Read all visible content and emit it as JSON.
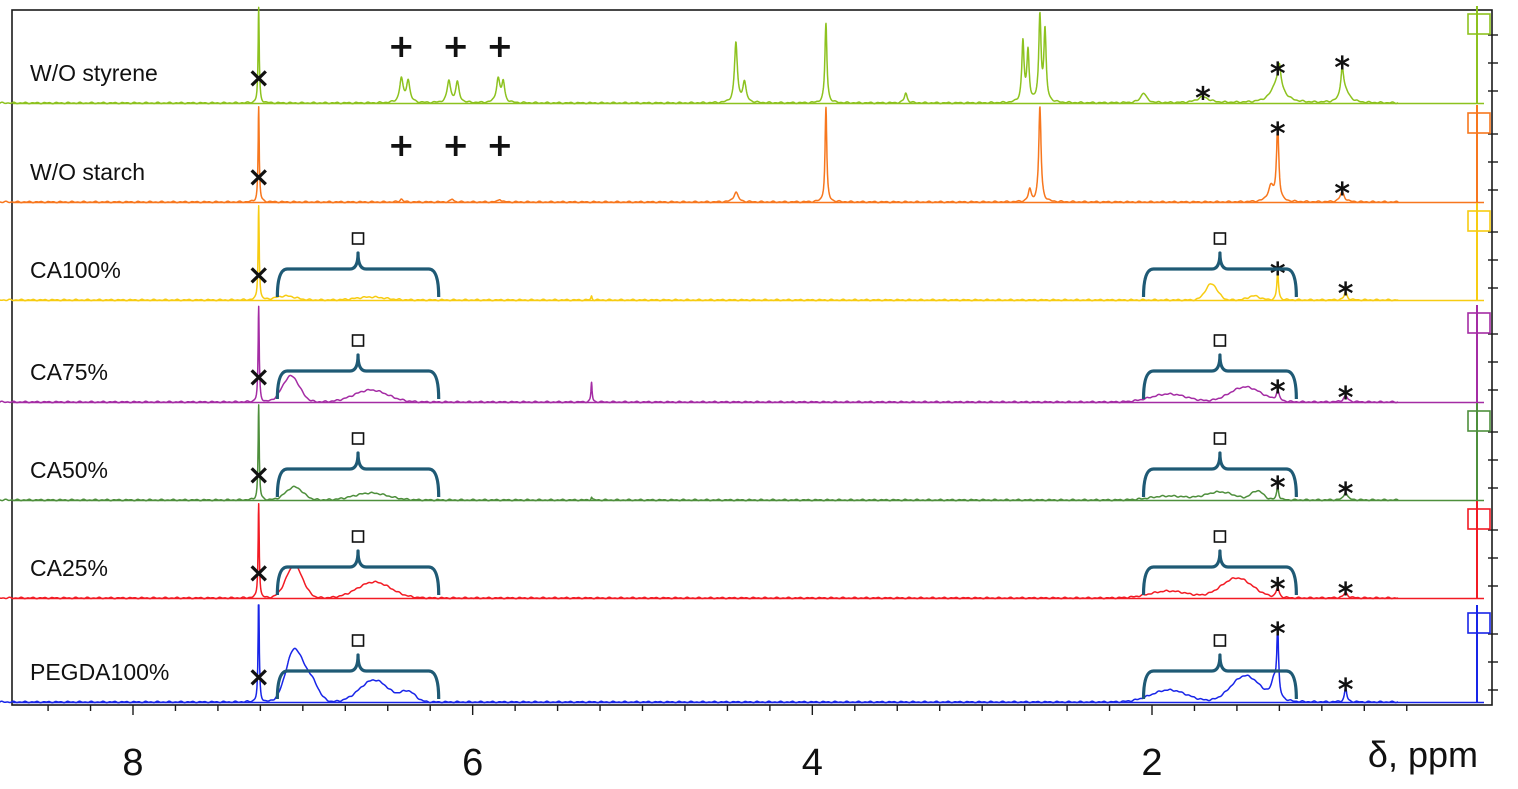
{
  "chart_data": {
    "type": "line",
    "title": "",
    "xlabel": "δ, ppm",
    "ylabel": "",
    "xlim": [
      9.0,
      0.5
    ],
    "x_reversed": true,
    "ticks": [
      8,
      6,
      4,
      2
    ],
    "tick_labels": [
      "8",
      "6",
      "4",
      "2"
    ],
    "grid": false,
    "markers": {
      "residual": "×",
      "vinyl": "+",
      "peak": "*",
      "polymer": "□"
    },
    "series": [
      {
        "name": "W/O styrene",
        "color": "#8dc21f",
        "peaks": [
          {
            "x": 7.26,
            "h": 95,
            "w": 0.004
          },
          {
            "x": 6.42,
            "h": 24,
            "w": 0.012
          },
          {
            "x": 6.38,
            "h": 22,
            "w": 0.012
          },
          {
            "x": 6.14,
            "h": 22,
            "w": 0.012
          },
          {
            "x": 6.09,
            "h": 20,
            "w": 0.012
          },
          {
            "x": 5.85,
            "h": 24,
            "w": 0.012
          },
          {
            "x": 5.82,
            "h": 20,
            "w": 0.01
          },
          {
            "x": 4.45,
            "h": 60,
            "w": 0.01
          },
          {
            "x": 4.4,
            "h": 20,
            "w": 0.012
          },
          {
            "x": 3.92,
            "h": 80,
            "w": 0.007
          },
          {
            "x": 3.45,
            "h": 10,
            "w": 0.01
          },
          {
            "x": 2.76,
            "h": 60,
            "w": 0.008
          },
          {
            "x": 2.73,
            "h": 50,
            "w": 0.008
          },
          {
            "x": 2.66,
            "h": 85,
            "w": 0.008
          },
          {
            "x": 2.63,
            "h": 70,
            "w": 0.008
          },
          {
            "x": 2.05,
            "h": 10,
            "w": 0.02
          },
          {
            "x": 1.7,
            "h": 6,
            "w": 0.04
          },
          {
            "x": 1.26,
            "h": 22,
            "w": 0.04
          },
          {
            "x": 1.25,
            "h": 18,
            "w": 0.01
          },
          {
            "x": 0.88,
            "h": 30,
            "w": 0.01
          },
          {
            "x": 0.86,
            "h": 10,
            "w": 0.03
          }
        ],
        "humps": [],
        "labels": [
          {
            "x": 7.26,
            "m": "×"
          },
          {
            "x": 6.42,
            "m": "+"
          },
          {
            "x": 6.1,
            "m": "+"
          },
          {
            "x": 5.84,
            "m": "+"
          },
          {
            "x": 1.7,
            "m": "*"
          },
          {
            "x": 1.26,
            "m": "*"
          },
          {
            "x": 0.88,
            "m": "*"
          }
        ],
        "braces": []
      },
      {
        "name": "W/O starch",
        "color": "#f7771e",
        "peaks": [
          {
            "x": 7.26,
            "h": 95,
            "w": 0.004
          },
          {
            "x": 6.42,
            "h": 3,
            "w": 0.01
          },
          {
            "x": 6.12,
            "h": 3,
            "w": 0.01
          },
          {
            "x": 5.84,
            "h": 3,
            "w": 0.01
          },
          {
            "x": 4.45,
            "h": 10,
            "w": 0.015
          },
          {
            "x": 3.92,
            "h": 95,
            "w": 0.006
          },
          {
            "x": 2.66,
            "h": 95,
            "w": 0.008
          },
          {
            "x": 2.72,
            "h": 12,
            "w": 0.01
          },
          {
            "x": 1.26,
            "h": 75,
            "w": 0.008
          },
          {
            "x": 1.3,
            "h": 15,
            "w": 0.02
          },
          {
            "x": 0.88,
            "h": 10,
            "w": 0.015
          }
        ],
        "humps": [],
        "labels": [
          {
            "x": 7.26,
            "m": "×"
          },
          {
            "x": 6.42,
            "m": "+"
          },
          {
            "x": 6.1,
            "m": "+"
          },
          {
            "x": 5.84,
            "m": "+"
          },
          {
            "x": 1.26,
            "m": "*"
          },
          {
            "x": 0.88,
            "m": "*"
          }
        ],
        "braces": []
      },
      {
        "name": "CA100%",
        "color": "#f7cc12",
        "peaks": [
          {
            "x": 7.26,
            "h": 95,
            "w": 0.004
          },
          {
            "x": 5.3,
            "h": 4,
            "w": 0.004
          },
          {
            "x": 1.26,
            "h": 28,
            "w": 0.006
          },
          {
            "x": 0.86,
            "h": 8,
            "w": 0.01
          }
        ],
        "humps": [
          {
            "x": 7.1,
            "h": 4,
            "w": 0.08
          },
          {
            "x": 6.6,
            "h": 3,
            "w": 0.12
          },
          {
            "x": 1.65,
            "h": 16,
            "w": 0.05
          },
          {
            "x": 1.4,
            "h": 4,
            "w": 0.05
          }
        ],
        "labels": [
          {
            "x": 7.26,
            "m": "×"
          },
          {
            "x": 1.26,
            "m": "*"
          },
          {
            "x": 0.86,
            "m": "*"
          }
        ],
        "braces": [
          {
            "from": 7.15,
            "to": 6.2
          },
          {
            "from": 2.05,
            "to": 1.15
          }
        ]
      },
      {
        "name": "CA75%",
        "color": "#a42ca4",
        "peaks": [
          {
            "x": 7.26,
            "h": 95,
            "w": 0.004
          },
          {
            "x": 5.3,
            "h": 20,
            "w": 0.004
          },
          {
            "x": 1.26,
            "h": 10,
            "w": 0.01
          },
          {
            "x": 0.86,
            "h": 6,
            "w": 0.015
          }
        ],
        "humps": [
          {
            "x": 7.07,
            "h": 26,
            "w": 0.07
          },
          {
            "x": 6.6,
            "h": 12,
            "w": 0.14
          },
          {
            "x": 1.9,
            "h": 8,
            "w": 0.15
          },
          {
            "x": 1.45,
            "h": 15,
            "w": 0.13
          }
        ],
        "labels": [
          {
            "x": 7.26,
            "m": "×"
          },
          {
            "x": 1.26,
            "m": "*"
          },
          {
            "x": 0.86,
            "m": "*"
          }
        ],
        "braces": [
          {
            "from": 7.15,
            "to": 6.2
          },
          {
            "from": 2.05,
            "to": 1.15
          }
        ]
      },
      {
        "name": "CA50%",
        "color": "#4e8f3c",
        "peaks": [
          {
            "x": 7.26,
            "h": 95,
            "w": 0.004
          },
          {
            "x": 5.3,
            "h": 3,
            "w": 0.004
          },
          {
            "x": 1.26,
            "h": 14,
            "w": 0.007
          },
          {
            "x": 0.86,
            "h": 8,
            "w": 0.012
          }
        ],
        "humps": [
          {
            "x": 7.05,
            "h": 13,
            "w": 0.07
          },
          {
            "x": 6.6,
            "h": 7,
            "w": 0.14
          },
          {
            "x": 1.9,
            "h": 4,
            "w": 0.15
          },
          {
            "x": 1.6,
            "h": 8,
            "w": 0.12
          },
          {
            "x": 1.38,
            "h": 9,
            "w": 0.05
          }
        ],
        "labels": [
          {
            "x": 7.26,
            "m": "×"
          },
          {
            "x": 1.26,
            "m": "*"
          },
          {
            "x": 0.86,
            "m": "*"
          }
        ],
        "braces": [
          {
            "from": 7.15,
            "to": 6.2
          },
          {
            "from": 2.05,
            "to": 1.15
          }
        ]
      },
      {
        "name": "CA25%",
        "color": "#f21b24",
        "peaks": [
          {
            "x": 7.26,
            "h": 95,
            "w": 0.004
          },
          {
            "x": 1.26,
            "h": 10,
            "w": 0.01
          },
          {
            "x": 0.86,
            "h": 5,
            "w": 0.015
          }
        ],
        "humps": [
          {
            "x": 7.05,
            "h": 32,
            "w": 0.07
          },
          {
            "x": 6.58,
            "h": 16,
            "w": 0.14
          },
          {
            "x": 1.9,
            "h": 7,
            "w": 0.16
          },
          {
            "x": 1.5,
            "h": 20,
            "w": 0.13
          }
        ],
        "labels": [
          {
            "x": 7.26,
            "m": "×"
          },
          {
            "x": 1.26,
            "m": "*"
          },
          {
            "x": 0.86,
            "m": "*"
          }
        ],
        "braces": [
          {
            "from": 7.15,
            "to": 6.2
          },
          {
            "from": 2.05,
            "to": 1.15
          }
        ]
      },
      {
        "name": "PEGDA100%",
        "color": "#1825e8",
        "peaks": [
          {
            "x": 7.26,
            "h": 110,
            "w": 0.004
          },
          {
            "x": 1.26,
            "h": 65,
            "w": 0.006
          },
          {
            "x": 1.28,
            "h": 20,
            "w": 0.02
          },
          {
            "x": 0.86,
            "h": 14,
            "w": 0.008
          }
        ],
        "humps": [
          {
            "x": 7.05,
            "h": 52,
            "w": 0.07
          },
          {
            "x": 6.95,
            "h": 20,
            "w": 0.06
          },
          {
            "x": 6.58,
            "h": 22,
            "w": 0.12
          },
          {
            "x": 6.38,
            "h": 10,
            "w": 0.06
          },
          {
            "x": 1.9,
            "h": 12,
            "w": 0.15
          },
          {
            "x": 1.45,
            "h": 26,
            "w": 0.12
          }
        ],
        "labels": [
          {
            "x": 7.26,
            "m": "×"
          },
          {
            "x": 1.26,
            "m": "*"
          },
          {
            "x": 0.86,
            "m": "*"
          }
        ],
        "braces": [
          {
            "from": 7.15,
            "to": 6.2
          },
          {
            "from": 2.05,
            "to": 1.15
          }
        ]
      }
    ]
  }
}
